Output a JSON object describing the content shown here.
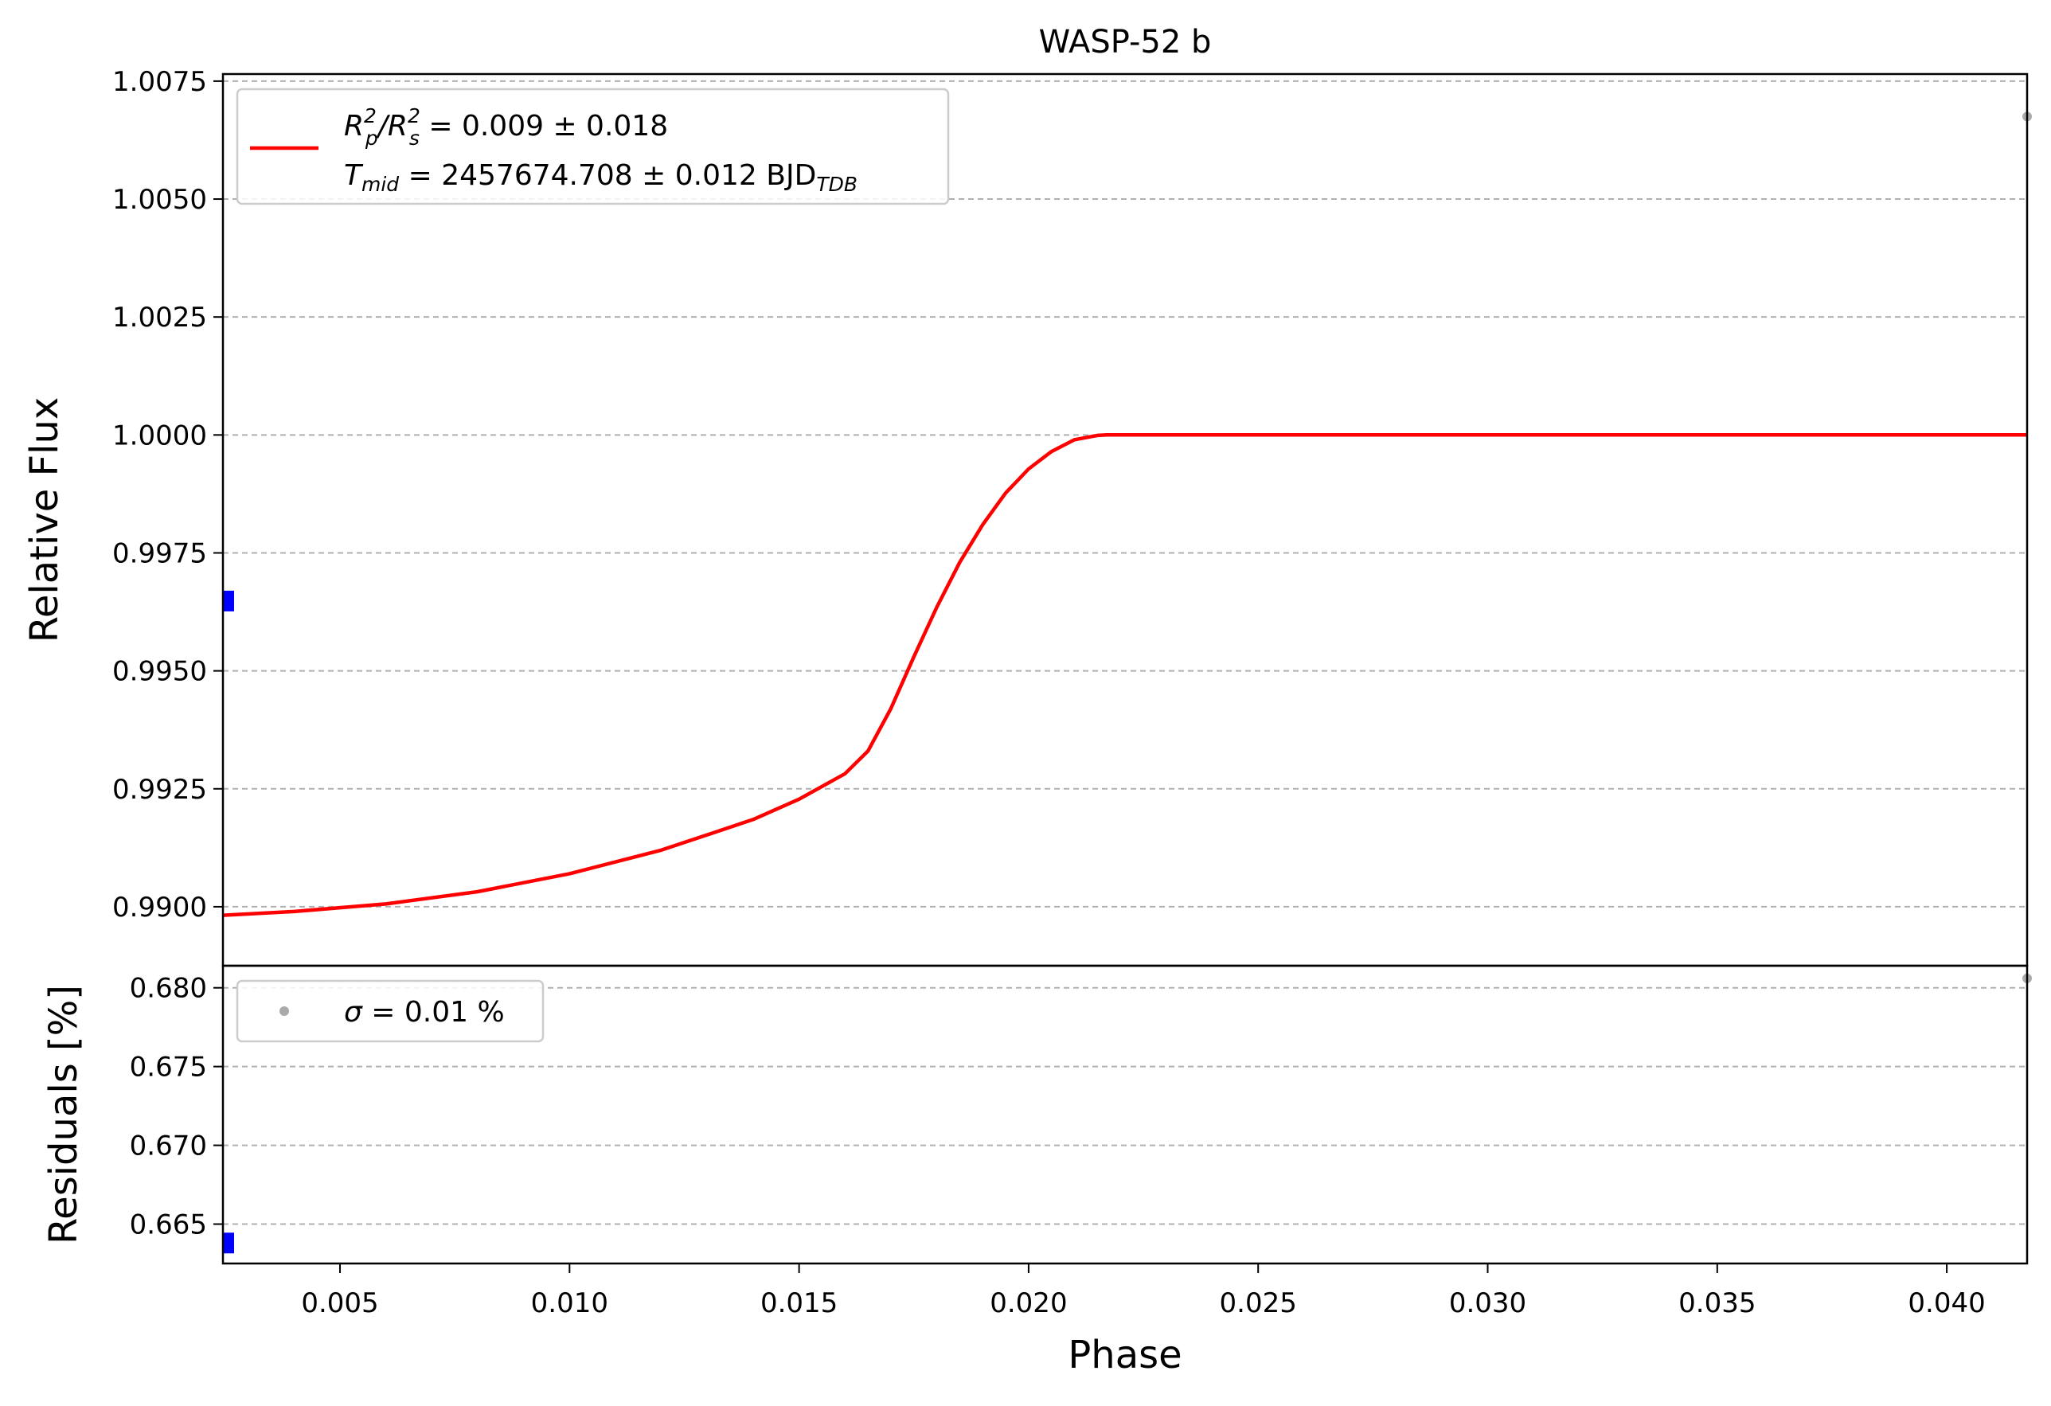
{
  "chart_data": {
    "type": "line",
    "title": "WASP-52 b",
    "xlabel": "Phase",
    "xlim": [
      0.00245,
      0.04175
    ],
    "x_ticks": [
      "0.005",
      "0.010",
      "0.015",
      "0.020",
      "0.025",
      "0.030",
      "0.035",
      "0.040"
    ],
    "x_tick_values": [
      0.005,
      0.01,
      0.015,
      0.02,
      0.025,
      0.03,
      0.035,
      0.04
    ],
    "grid": "horizontal dashed",
    "panels": {
      "flux": {
        "ylabel": "Relative Flux",
        "ylim": [
          0.98875,
          1.00765
        ],
        "y_ticks": [
          "0.9900",
          "0.9925",
          "0.9950",
          "0.9975",
          "1.0000",
          "1.0025",
          "1.0050",
          "1.0075"
        ],
        "y_tick_values": [
          0.99,
          0.9925,
          0.995,
          0.9975,
          1.0,
          1.0025,
          1.005,
          1.0075
        ],
        "legend_position": "upper left",
        "legend": {
          "line1_r": "R",
          "line1_p_sup": "2",
          "line1_p_sub": "p",
          "line1_slash": "/R",
          "line1_s_sup": "2",
          "line1_s_sub": "s",
          "line1_rest": " = 0.009 ± 0.018",
          "line2_t": "T",
          "line2_sub": "mid",
          "line2_rest": " = 2457674.708 ± 0.012 BJD",
          "line2_unit_sub": "TDB"
        },
        "series": [
          {
            "color": "#ff0000",
            "x": [
              0.00245,
              0.004,
              0.006,
              0.008,
              0.01,
              0.012,
              0.014,
              0.015,
              0.016,
              0.0165,
              0.017,
              0.0175,
              0.018,
              0.0185,
              0.019,
              0.0195,
              0.02,
              0.0205,
              0.021,
              0.0215,
              0.0217,
              0.025,
              0.03,
              0.035,
              0.04175
            ],
            "y": [
              0.98982,
              0.9899,
              0.99006,
              0.99032,
              0.9907,
              0.9912,
              0.99185,
              0.99228,
              0.99282,
              0.9933,
              0.9942,
              0.9953,
              0.99635,
              0.9973,
              0.9981,
              0.99877,
              0.99928,
              0.99965,
              0.9999,
              0.99999,
              1.0,
              1.0,
              1.0,
              1.0,
              1.0
            ]
          }
        ],
        "data_points": [
          {
            "x": 0.00245,
            "y": 0.99648,
            "color": "#0000ff"
          },
          {
            "x": 0.04175,
            "y": 1.00675,
            "color": "#aaaaaa"
          }
        ]
      },
      "residuals": {
        "ylabel": "Residuals [%]",
        "ylim": [
          0.6625,
          0.6814
        ],
        "y_ticks": [
          "0.665",
          "0.670",
          "0.675",
          "0.680"
        ],
        "y_tick_values": [
          0.665,
          0.67,
          0.675,
          0.68
        ],
        "legend_position": "upper left",
        "legend": {
          "sigma": "σ",
          "rest": " = 0.01 %"
        },
        "data_points": [
          {
            "x": 0.00245,
            "y": 0.6638,
            "color": "#0000ff"
          },
          {
            "x": 0.04175,
            "y": 0.6806,
            "color": "#aaaaaa"
          }
        ]
      }
    }
  }
}
